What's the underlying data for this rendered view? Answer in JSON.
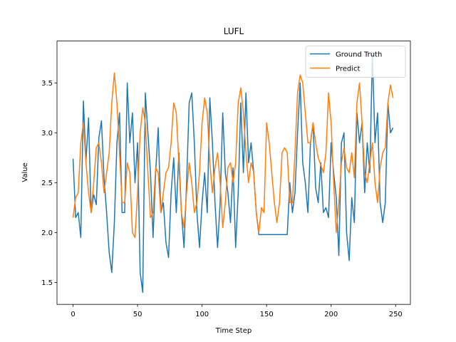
{
  "chart_data": {
    "type": "line",
    "title": "LUFL",
    "x_label": "Time Step",
    "y_label": "Value",
    "legend": "upper right",
    "xlim": [
      -12.45,
      261.45
    ],
    "ylim": [
      1.28,
      3.92
    ],
    "xticks": [
      0,
      50,
      100,
      150,
      200,
      250
    ],
    "yticks": [
      1.5,
      {
        "value": 2,
        "label": "2.0"
      },
      2.5,
      {
        "value": 3,
        "label": "3.0"
      },
      3.5
    ],
    "x": [
      0,
      2,
      4,
      6,
      8,
      10,
      12,
      14,
      16,
      18,
      20,
      22,
      24,
      26,
      28,
      30,
      32,
      34,
      36,
      38,
      40,
      42,
      44,
      46,
      48,
      50,
      52,
      54,
      56,
      58,
      60,
      62,
      64,
      66,
      68,
      70,
      72,
      74,
      76,
      78,
      80,
      82,
      84,
      86,
      88,
      90,
      92,
      94,
      96,
      98,
      100,
      102,
      104,
      106,
      108,
      110,
      112,
      114,
      116,
      118,
      120,
      122,
      124,
      126,
      128,
      130,
      132,
      134,
      136,
      138,
      140,
      142,
      144,
      146,
      148,
      150,
      152,
      154,
      156,
      158,
      160,
      162,
      164,
      166,
      168,
      170,
      172,
      174,
      176,
      178,
      180,
      182,
      184,
      186,
      188,
      190,
      192,
      194,
      196,
      198,
      200,
      202,
      204,
      206,
      208,
      210,
      212,
      214,
      216,
      218,
      220,
      222,
      224,
      226,
      228,
      230,
      232,
      234,
      236,
      238,
      240,
      242,
      244,
      246,
      248
    ],
    "series": [
      {
        "name": "Ground Truth",
        "color": "#1f77b4",
        "values": [
          2.74,
          2.15,
          2.2,
          1.95,
          3.32,
          2.72,
          3.15,
          2.2,
          2.38,
          2.28,
          2.95,
          3.12,
          2.55,
          2.2,
          1.8,
          1.6,
          2.1,
          2.9,
          3.2,
          2.2,
          2.2,
          3.5,
          2.9,
          3.2,
          2.5,
          2.9,
          1.6,
          1.4,
          3.4,
          3.0,
          2.6,
          1.95,
          2.6,
          3.05,
          2.2,
          2.3,
          1.9,
          1.75,
          2.4,
          2.75,
          2.2,
          2.8,
          2.2,
          1.85,
          2.5,
          3.3,
          3.4,
          2.9,
          2.2,
          1.85,
          2.3,
          2.6,
          2.2,
          3.35,
          2.9,
          2.3,
          1.85,
          2.3,
          3.2,
          2.6,
          2.4,
          2.1,
          2.65,
          1.85,
          2.4,
          3.3,
          2.6,
          3.4,
          2.7,
          2.9,
          2.6,
          2.2,
          1.98,
          1.98,
          1.98,
          1.98,
          1.98,
          1.98,
          1.98,
          1.98,
          1.98,
          1.98,
          1.98,
          1.98,
          2.5,
          2.2,
          2.4,
          3.0,
          3.5,
          2.7,
          2.5,
          2.2,
          2.9,
          3.1,
          2.45,
          2.3,
          2.7,
          2.2,
          2.25,
          2.15,
          2.9,
          2.6,
          2.35,
          1.77,
          2.9,
          3.0,
          2.0,
          1.72,
          2.35,
          2.1,
          3.2,
          2.9,
          3.1,
          2.4,
          2.9,
          2.6,
          3.8,
          2.9,
          3.2,
          2.3,
          2.1,
          2.3,
          3.3,
          3.0,
          3.05
        ]
      },
      {
        "name": "Predict",
        "color": "#ff7f0e",
        "values": [
          2.15,
          2.35,
          2.4,
          2.9,
          3.1,
          2.7,
          2.4,
          2.2,
          2.5,
          2.85,
          2.9,
          2.7,
          2.4,
          2.6,
          2.8,
          3.3,
          3.6,
          3.3,
          2.8,
          2.3,
          2.3,
          2.7,
          2.6,
          2.0,
          1.95,
          2.4,
          3.0,
          3.25,
          3.1,
          2.6,
          2.15,
          2.2,
          2.65,
          2.6,
          2.2,
          2.4,
          2.6,
          2.65,
          2.9,
          3.3,
          3.2,
          2.7,
          2.2,
          2.05,
          2.4,
          2.7,
          2.5,
          2.2,
          2.3,
          2.6,
          3.1,
          3.35,
          3.2,
          2.7,
          2.4,
          2.65,
          2.8,
          2.5,
          2.05,
          2.3,
          2.65,
          2.7,
          2.5,
          2.7,
          3.3,
          3.45,
          3.2,
          2.8,
          2.5,
          2.7,
          2.6,
          2.2,
          2.0,
          2.25,
          2.2,
          3.1,
          2.9,
          2.6,
          2.3,
          2.1,
          2.3,
          2.8,
          2.85,
          2.8,
          2.3,
          2.3,
          2.8,
          3.4,
          3.58,
          3.5,
          3.2,
          2.9,
          2.9,
          3.1,
          2.9,
          2.75,
          2.68,
          2.6,
          2.8,
          3.4,
          3.1,
          2.5,
          2.0,
          2.3,
          2.7,
          2.85,
          2.65,
          2.6,
          2.8,
          2.55,
          3.3,
          3.5,
          3.1,
          2.6,
          2.5,
          2.7,
          2.9,
          2.5,
          2.3,
          2.65,
          2.8,
          2.85,
          3.3,
          3.48,
          3.35
        ]
      }
    ]
  }
}
